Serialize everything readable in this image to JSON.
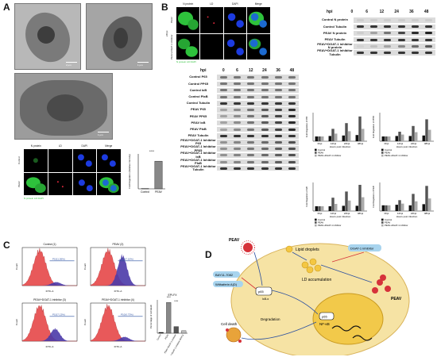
{
  "panels": {
    "a": "A",
    "b": "B",
    "c": "C",
    "d": "D"
  },
  "a": {
    "scale_labels": [
      "2 μm",
      "1 μm",
      "1 μm"
    ],
    "if_headers": [
      "N protein",
      "LD",
      "DAPI",
      "Merge"
    ],
    "if_rows": [
      "Control",
      "PEAV"
    ],
    "if_legend": "N protein LD DAPI",
    "bar_chart": {
      "type": "bar",
      "categories": [
        "Control",
        "PEAV"
      ],
      "values": [
        0.1,
        9.5
      ],
      "ylabel": "Fold Regulation (Relative intensity)",
      "ylim": [
        0,
        12
      ],
      "significance": "****"
    }
  },
  "b": {
    "if_headers": [
      "N protein",
      "LD",
      "DAPI",
      "Merge"
    ],
    "if_rows": [
      "PEAV",
      "PEAV+DGAT-1 inhibitor"
    ],
    "if_group": "24hpi",
    "if_legend": "N protein LD DAPI",
    "hpi_label": "hpi",
    "hpi_values": [
      "0",
      "6",
      "12",
      "24",
      "36",
      "48"
    ],
    "top_blots": [
      "Control N protein",
      "Control Tubulin",
      "PEAV N protein",
      "PEAV Tubulin",
      "PEAV+DGAT-1 inhibitor N protein",
      "PEAV+DGAT-1 inhibitor Tubulin"
    ],
    "left_blots": [
      "Control P65",
      "Control PP65",
      "Control IκB",
      "Control PIκB",
      "Control Tubulin",
      "PEAV P65",
      "PEAV PP65",
      "PEAV IκB",
      "PEAV PIκB",
      "PEAV Tubulin",
      "PEAV+DGAT-1 Inhibitor P65",
      "PEAV+DGAT-1 Inhibitor PP65",
      "PEAV+DGAT-1 Inhibitor IκB",
      "PEAV+DGAT-1 Inhibitor PIκB",
      "PEAV+DGAT-1 Inhibitor Tubulin"
    ],
    "quant_charts": [
      {
        "type": "bar",
        "categories": [
          "0hpi",
          "12hpi",
          "24hpi",
          "48hpi"
        ],
        "series": [
          {
            "name": "Control",
            "values": [
              1.0,
              1.1,
              1.2,
              1.3
            ],
            "color": "#111111"
          },
          {
            "name": "PEAV",
            "values": [
              1.0,
              2.6,
              3.8,
              5.2
            ],
            "color": "#555555"
          },
          {
            "name": "PEAV+DGAT-1 inhibitor",
            "values": [
              1.0,
              1.6,
              2.1,
              2.6
            ],
            "color": "#aaaaaa"
          }
        ],
        "ylabel": "Fold Regulation of P65",
        "xlabel": "Hours post infection"
      },
      {
        "type": "bar",
        "categories": [
          "0hpi",
          "12hpi",
          "24hpi",
          "48hpi"
        ],
        "series": [
          {
            "name": "Control",
            "values": [
              1.0,
              1.1,
              1.1,
              1.2
            ],
            "color": "#111111"
          },
          {
            "name": "PEAV",
            "values": [
              1.0,
              2.0,
              3.2,
              4.6
            ],
            "color": "#555555"
          },
          {
            "name": "PEAV+DGAT-1 inhibitor",
            "values": [
              1.0,
              1.4,
              1.9,
              2.4
            ],
            "color": "#aaaaaa"
          }
        ],
        "ylabel": "Fold Regulation of PP65",
        "xlabel": "Hours post infection"
      },
      {
        "type": "bar",
        "categories": [
          "0hpi",
          "12hpi",
          "24hpi",
          "48hpi"
        ],
        "series": [
          {
            "name": "Control",
            "values": [
              1.0,
              1.0,
              1.1,
              1.1
            ],
            "color": "#111111"
          },
          {
            "name": "PEAV",
            "values": [
              1.0,
              2.8,
              4.1,
              5.5
            ],
            "color": "#555555"
          },
          {
            "name": "PEAV+DGAT-1 inhibitor",
            "values": [
              1.0,
              1.5,
              2.2,
              2.9
            ],
            "color": "#aaaaaa"
          }
        ],
        "ylabel": "Fold Regulation of IκB",
        "xlabel": "Hours post infection"
      },
      {
        "type": "bar",
        "categories": [
          "0hpi",
          "12hpi",
          "24hpi",
          "48hpi"
        ],
        "series": [
          {
            "name": "Control",
            "values": [
              1.0,
              1.1,
              1.0,
              1.2
            ],
            "color": "#111111"
          },
          {
            "name": "PEAV",
            "values": [
              1.0,
              1.9,
              3.0,
              4.4
            ],
            "color": "#555555"
          },
          {
            "name": "PEAV+DGAT-1 inhibitor",
            "values": [
              1.0,
              1.3,
              1.7,
              2.2
            ],
            "color": "#aaaaaa"
          }
        ],
        "ylabel": "Fold Regulation of PIκB",
        "xlabel": "Hours post infection"
      }
    ]
  },
  "c": {
    "flow_titles": [
      "Control  (1)",
      "PEAV  (2)",
      "PEAV+DGAT-1 inhibitor  (3)",
      "PEAV+DGAT-1 inhibitor  (4)"
    ],
    "flow_gates": [
      "P10(1.06%)",
      "P10(7.10%)",
      "P10(7.13%)",
      "P10(0.73%)"
    ],
    "xaxis": "FITC-A",
    "yaxis": "Count",
    "summary_title": "EPI-FX",
    "bar_chart": {
      "type": "bar",
      "categories": [
        "Control",
        "PEAV",
        "PEAV+DGAT-1 inhibitor",
        "PEAV+DGAT-1 inhibitor+BAY11"
      ],
      "values": [
        1.0,
        37.0,
        8.0,
        3.0
      ],
      "ylabel": "Percentage of cell death",
      "ylim": [
        0,
        40
      ],
      "significance": [
        "****",
        "****"
      ]
    }
  },
  "d": {
    "labels": {
      "virus": "PEAV",
      "lipid": "Lipid droplets",
      "dgat": "DGAT-1 inhibitor",
      "bay": "BAY11-7082",
      "withaferin": "Withaferin A(D)",
      "ld_accum": "LD accumulation",
      "peav_right": "PEAV",
      "degradation": "Degradation",
      "nfkb": "NF-κB",
      "p65": "p65",
      "p65_nuc": "p65",
      "ikba": "IκB-α",
      "cell_death": "Cell death"
    }
  },
  "colors": {
    "flow_red": "#e8595a",
    "flow_blue": "#4b3aa8",
    "if_green": "#2ec23c",
    "if_blue": "#1c3be0",
    "if_red": "#e0283c",
    "cell_fill": "#f6e3a4",
    "nucleus_fill": "#f2c94a",
    "virus_red": "#d6323a",
    "lipid_yellow": "#f4c742",
    "inhibitor_blue": "#a8d4ee"
  }
}
